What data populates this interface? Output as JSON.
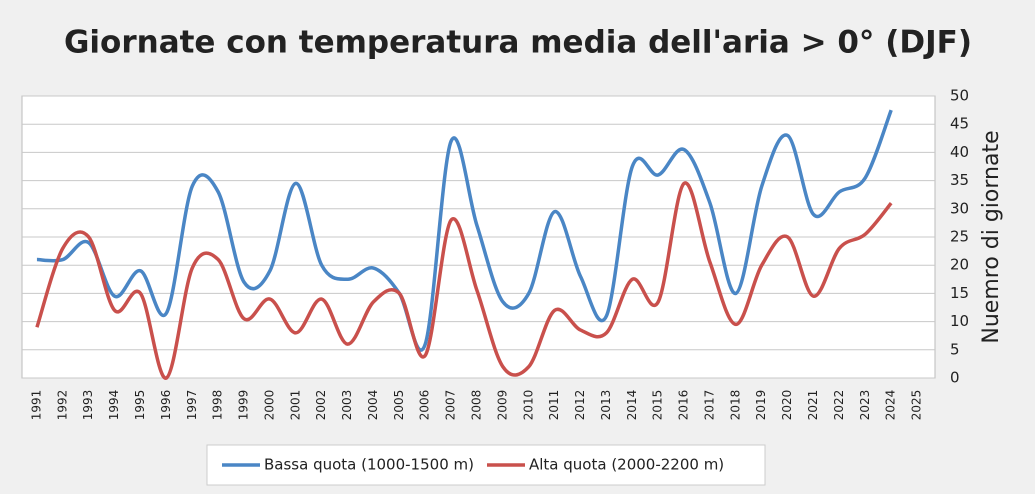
{
  "chart_data": {
    "type": "line",
    "title": "Giornate con temperatura media dell'aria > 0° (DJF)",
    "y_axis_label": "Nuemro di giornate",
    "categories": [
      "1991",
      "1992",
      "1993",
      "1994",
      "1995",
      "1996",
      "1997",
      "1998",
      "1999",
      "2000",
      "2001",
      "2002",
      "2003",
      "2004",
      "2005",
      "2006",
      "2007",
      "2008",
      "2009",
      "2010",
      "2011",
      "2012",
      "2013",
      "2014",
      "2015",
      "2016",
      "2017",
      "2018",
      "2019",
      "2020",
      "2021",
      "2022",
      "2023",
      "2024",
      "2025"
    ],
    "series": [
      {
        "name": "Bassa quota (1000-1500 m)",
        "color": "#4a86c5",
        "values": [
          21,
          21,
          24,
          14.5,
          19,
          11.5,
          34,
          33,
          17,
          19,
          34.5,
          20,
          17.5,
          19.5,
          15,
          6,
          42,
          27,
          13.5,
          15,
          29.5,
          18,
          11,
          37.5,
          36,
          40.5,
          31,
          15,
          34,
          43,
          29,
          33,
          35.5,
          47.5,
          null
        ]
      },
      {
        "name": "Alta quota (2000-2200 m)",
        "color": "#c9504c",
        "values": [
          9,
          23,
          25,
          12,
          15,
          0,
          19.5,
          21,
          10.5,
          14,
          8,
          14,
          6,
          13.5,
          15,
          4,
          28,
          15.5,
          2,
          2,
          12,
          8.5,
          8,
          17.5,
          13.5,
          34.5,
          20.5,
          9.5,
          20,
          25,
          14.5,
          23,
          25.5,
          31,
          null
        ]
      }
    ],
    "ylim": [
      0,
      50
    ],
    "yticks": [
      0,
      5,
      10,
      15,
      20,
      25,
      30,
      35,
      40,
      45,
      50
    ],
    "y_axis_side": "right",
    "grid": true,
    "smooth": true,
    "legend": "bottom"
  }
}
